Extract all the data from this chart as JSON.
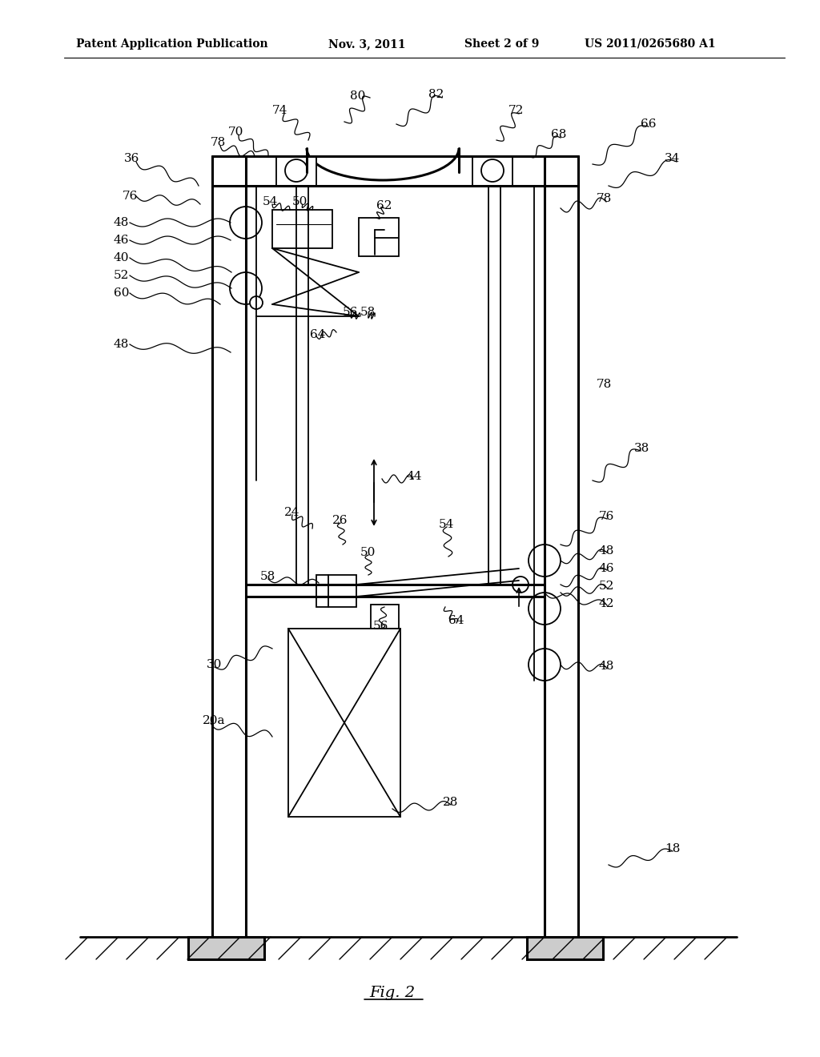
{
  "bg_color": "#ffffff",
  "line_color": "#000000",
  "header_text": "Patent Application Publication",
  "header_date": "Nov. 3, 2011",
  "header_sheet": "Sheet 2 of 9",
  "header_patent": "US 2011/0265680 A1",
  "fig_label": "Fig. 2"
}
